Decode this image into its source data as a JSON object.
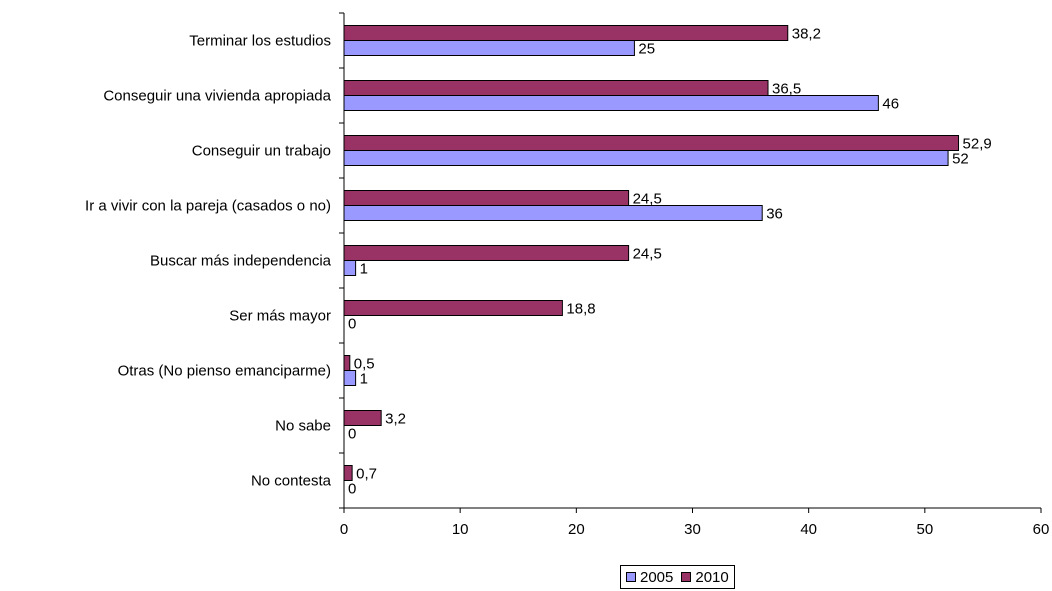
{
  "chart_data": {
    "type": "bar",
    "orientation": "horizontal",
    "categories": [
      "Terminar los estudios",
      "Conseguir una vivienda apropiada",
      "Conseguir un trabajo",
      "Ir a vivir con la pareja (casados o no)",
      "Buscar más independencia",
      "Ser más mayor",
      "Otras (No pienso emanciparme)",
      "No sabe",
      "No contesta"
    ],
    "series": [
      {
        "name": "2010",
        "color": "#993366",
        "values": [
          38.2,
          36.5,
          52.9,
          24.5,
          24.5,
          18.8,
          0.5,
          3.2,
          0.7
        ],
        "labels": [
          "38,2",
          "36,5",
          "52,9",
          "24,5",
          "24,5",
          "18,8",
          "0,5",
          "3,2",
          "0,7"
        ]
      },
      {
        "name": "2005",
        "color": "#9999FF",
        "values": [
          25,
          46,
          52,
          36,
          1,
          0,
          1,
          0,
          0
        ],
        "labels": [
          "25",
          "46",
          "52",
          "36",
          "1",
          "0",
          "1",
          "0",
          "0"
        ]
      }
    ],
    "xlim": [
      0,
      60
    ],
    "xticks": [
      "0",
      "10",
      "20",
      "30",
      "40",
      "50",
      "60"
    ],
    "title": "",
    "xlabel": "",
    "ylabel": "",
    "grid": false,
    "legend_position": "bottom",
    "legend_order": [
      "2005",
      "2010"
    ]
  }
}
